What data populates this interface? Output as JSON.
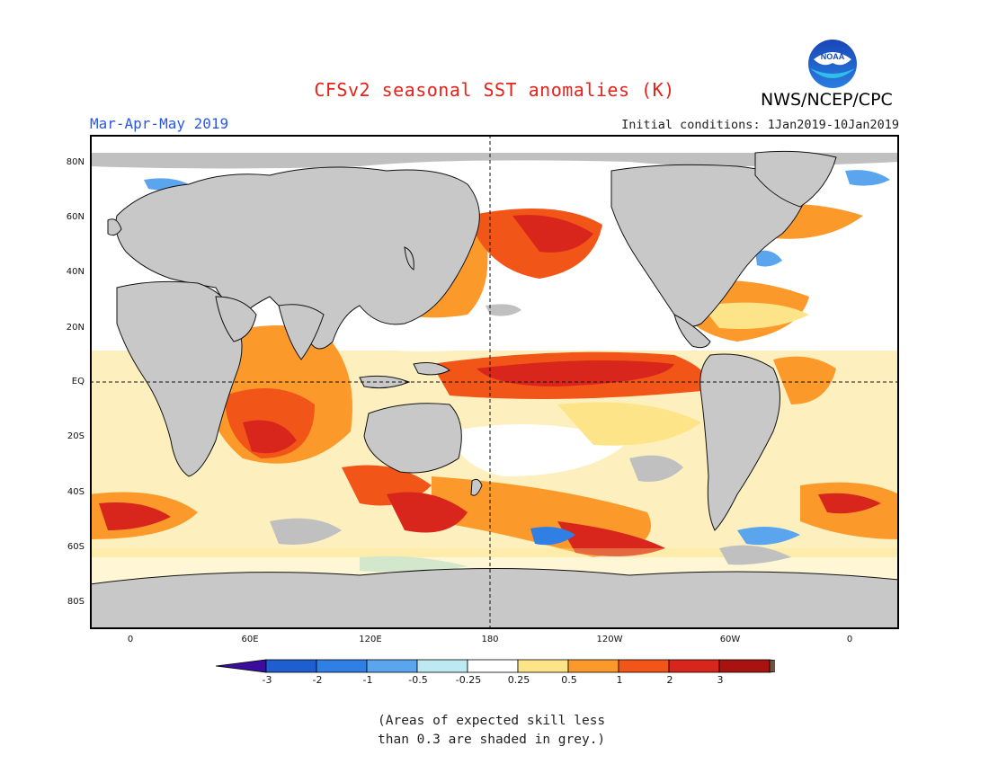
{
  "header": {
    "title": "CFSv2 seasonal SST anomalies (K)",
    "season": "Mar-Apr-May 2019",
    "initial_conditions": "Initial conditions: 1Jan2019-10Jan2019",
    "agency": "NWS/NCEP/CPC",
    "logo_text": "NOAA"
  },
  "axes": {
    "lat_labels": [
      "80N",
      "60N",
      "40N",
      "20N",
      "EQ",
      "20S",
      "40S",
      "60S",
      "80S"
    ],
    "lon_labels": [
      "0",
      "60E",
      "120E",
      "180",
      "120W",
      "60W",
      "0"
    ]
  },
  "colorbar": {
    "labels": [
      "-3",
      "-2",
      "-1",
      "-0.5",
      "-0.25",
      "0.25",
      "0.5",
      "1",
      "2",
      "3"
    ],
    "colors": {
      "lt_-3": "#3b0d9c",
      "-3_-2": "#1e5ed0",
      "-2_-1": "#2f7fe4",
      "-1_-0.5": "#5aa5ee",
      "-0.5_-0.25": "#bde9f2",
      "-0.25_0.25": "#ffffff",
      "0.25_0.5": "#fde488",
      "0.5_1": "#fb9a2a",
      "1_2": "#f25518",
      "2_3": "#d9261c",
      "gt_3": "#a8130f",
      "beyond": "#74503e"
    }
  },
  "colors": {
    "land": "#c8c8c8",
    "low_skill": "#c0c0c0",
    "title": "#e8221b",
    "season": "#2b57e8"
  },
  "footnote": {
    "line1": "(Areas of expected skill less",
    "line2": "than 0.3 are shaded in grey.)"
  }
}
